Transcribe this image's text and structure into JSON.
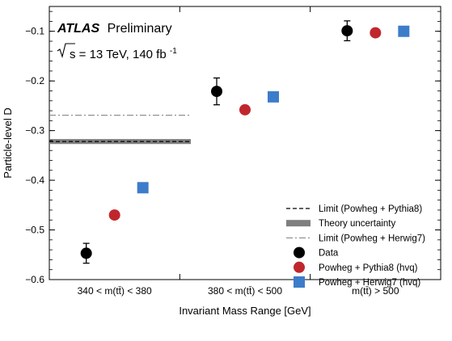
{
  "chart_data": {
    "type": "scatter",
    "categories": [
      "340 < m(tt̄) < 380",
      "380 < m(tt̄) < 500",
      "m(tt̄) > 500"
    ],
    "xlabel": "Invariant Mass Range [GeV]",
    "ylabel": "Particle-level D",
    "ylim": [
      -0.6,
      -0.05
    ],
    "yticks": [
      -0.6,
      -0.5,
      -0.4,
      -0.3,
      -0.2,
      -0.1
    ],
    "ytick_labels": [
      "−0.6",
      "−0.5",
      "−0.4",
      "−0.3",
      "−0.2",
      "−0.1"
    ],
    "annotations": {
      "experiment": "ATLAS",
      "status": "Preliminary",
      "energy_prefix": "s = 13 TeV, 140 fb",
      "energy_sup": "-1"
    },
    "limits": {
      "powheg_pythia8": -0.322,
      "theory_band": [
        -0.327,
        -0.317
      ],
      "powheg_herwig7": -0.269
    },
    "series": [
      {
        "name": "Data",
        "values": [
          -0.547,
          -0.221,
          -0.099
        ],
        "errors": [
          0.02,
          0.027,
          0.02
        ],
        "color": "#000000",
        "marker": "circle"
      },
      {
        "name": "Powheg + Pythia8 (hvq)",
        "values": [
          -0.47,
          -0.258,
          -0.103
        ],
        "color": "#c0272d",
        "marker": "circle"
      },
      {
        "name": "Powheg + Herwig7 (hvq)",
        "values": [
          -0.415,
          -0.232,
          -0.1
        ],
        "color": "#3d7cc9",
        "marker": "square"
      }
    ],
    "legend": {
      "position": "bottom-right",
      "entries": [
        "Limit (Powheg + Pythia8)",
        "Theory uncertainty",
        "Limit (Powheg + Herwig7)",
        "Data",
        "Powheg + Pythia8 (hvq)",
        "Powheg + Herwig7 (hvq)"
      ]
    },
    "colors": {
      "band": "#7f7f7f",
      "herwig_limit_line": "#8a8a8a"
    }
  }
}
